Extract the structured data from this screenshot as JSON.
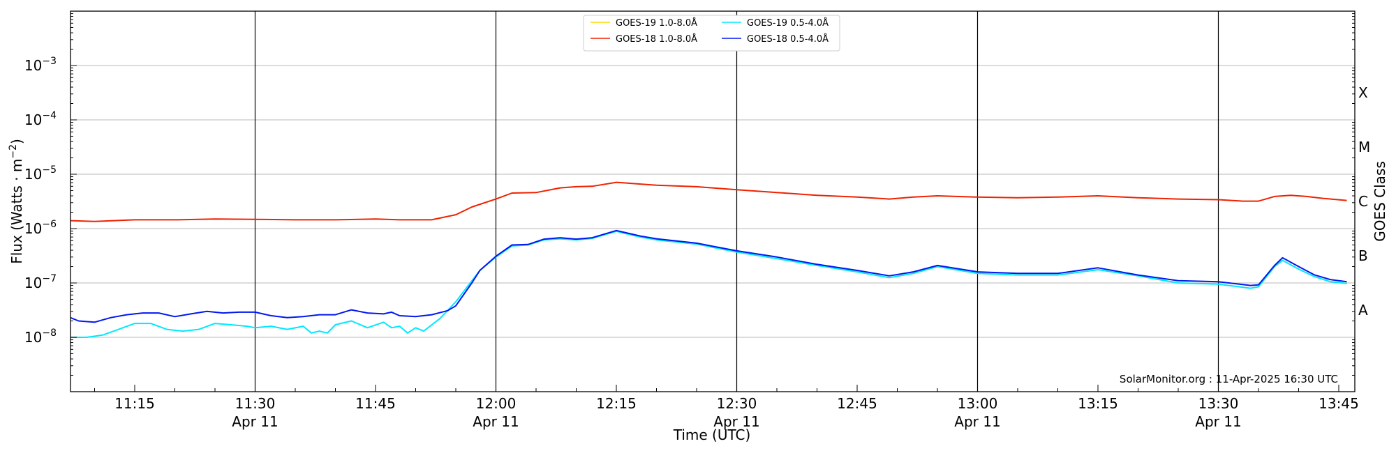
{
  "chart_data": {
    "type": "line",
    "xlabel": "Time (UTC)",
    "ylabel": "Flux (Watts · m",
    "ylabel_sup": "−2",
    "ylabel_close": ")",
    "y2label": "GOES Class",
    "credit": "SolarMonitor.org : 11-Apr-2025 16:30 UTC",
    "yscale": "log",
    "ylim": [
      1e-09,
      0.01
    ],
    "xlim": [
      "11:07",
      "13:47"
    ],
    "grid": "horizontal gridlines at decades; vertical lines at half hours",
    "legend_position": "top-center",
    "y_ticks": [
      {
        "value": 1e-08,
        "base": "10",
        "exp": "−8"
      },
      {
        "value": 1e-07,
        "base": "10",
        "exp": "−7"
      },
      {
        "value": 1e-06,
        "base": "10",
        "exp": "−6"
      },
      {
        "value": 1e-05,
        "base": "10",
        "exp": "−5"
      },
      {
        "value": 0.0001,
        "base": "10",
        "exp": "−4"
      },
      {
        "value": 0.001,
        "base": "10",
        "exp": "−3"
      }
    ],
    "class_labels": [
      {
        "label": "A",
        "value": 1e-08
      },
      {
        "label": "B",
        "value": 1e-07
      },
      {
        "label": "C",
        "value": 1e-06
      },
      {
        "label": "M",
        "value": 1e-05
      },
      {
        "label": "X",
        "value": 0.0001
      }
    ],
    "x_ticks": [
      {
        "time": "11:15",
        "label": "11:15",
        "date": ""
      },
      {
        "time": "11:30",
        "label": "11:30",
        "date": "Apr 11"
      },
      {
        "time": "11:45",
        "label": "11:45",
        "date": ""
      },
      {
        "time": "12:00",
        "label": "12:00",
        "date": "Apr 11"
      },
      {
        "time": "12:15",
        "label": "12:15",
        "date": ""
      },
      {
        "time": "12:30",
        "label": "12:30",
        "date": "Apr 11"
      },
      {
        "time": "12:45",
        "label": "12:45",
        "date": ""
      },
      {
        "time": "13:00",
        "label": "13:00",
        "date": "Apr 11"
      },
      {
        "time": "13:15",
        "label": "13:15",
        "date": ""
      },
      {
        "time": "13:30",
        "label": "13:30",
        "date": "Apr 11"
      },
      {
        "time": "13:45",
        "label": "13:45",
        "date": ""
      }
    ],
    "series": [
      {
        "name": "GOES-19 1.0-8.0Å",
        "color": "#ffd700",
        "x": [],
        "y": []
      },
      {
        "name": "GOES-18 1.0-8.0Å",
        "color": "#ee2200",
        "x": [
          "11:07",
          "11:10",
          "11:15",
          "11:20",
          "11:25",
          "11:30",
          "11:35",
          "11:40",
          "11:45",
          "11:48",
          "11:52",
          "11:55",
          "11:57",
          "12:00",
          "12:02",
          "12:05",
          "12:08",
          "12:10",
          "12:12",
          "12:15",
          "12:18",
          "12:20",
          "12:25",
          "12:30",
          "12:35",
          "12:40",
          "12:45",
          "12:49",
          "12:52",
          "12:55",
          "13:00",
          "13:05",
          "13:10",
          "13:15",
          "13:20",
          "13:25",
          "13:30",
          "13:33",
          "13:35",
          "13:37",
          "13:39",
          "13:41",
          "13:43",
          "13:46"
        ],
        "y": [
          1.4e-06,
          1.35e-06,
          1.45e-06,
          1.45e-06,
          1.5e-06,
          1.48e-06,
          1.45e-06,
          1.45e-06,
          1.5e-06,
          1.45e-06,
          1.45e-06,
          1.8e-06,
          2.5e-06,
          3.5e-06,
          4.5e-06,
          4.6e-06,
          5.6e-06,
          5.9e-06,
          6e-06,
          7.1e-06,
          6.6e-06,
          6.3e-06,
          5.9e-06,
          5.2e-06,
          4.6e-06,
          4.1e-06,
          3.8e-06,
          3.5e-06,
          3.8e-06,
          4e-06,
          3.8e-06,
          3.7e-06,
          3.8e-06,
          4e-06,
          3.7e-06,
          3.5e-06,
          3.4e-06,
          3.2e-06,
          3.2e-06,
          3.9e-06,
          4.1e-06,
          3.9e-06,
          3.6e-06,
          3.3e-06
        ]
      },
      {
        "name": "GOES-19 0.5-4.0Å",
        "color": "#00e8ff",
        "x": [
          "11:07",
          "11:09",
          "11:11",
          "11:13",
          "11:15",
          "11:17",
          "11:19",
          "11:21",
          "11:23",
          "11:25",
          "11:27",
          "11:29",
          "11:30",
          "11:32",
          "11:34",
          "11:36",
          "11:37",
          "11:38",
          "11:39",
          "11:40",
          "11:42",
          "11:44",
          "11:46",
          "11:47",
          "11:48",
          "11:49",
          "11:50",
          "11:51",
          "11:53",
          "11:55",
          "11:57",
          "11:58",
          "12:00",
          "12:02",
          "12:04",
          "12:06",
          "12:08",
          "12:10",
          "12:12",
          "12:15",
          "12:18",
          "12:20",
          "12:25",
          "12:30",
          "12:35",
          "12:40",
          "12:45",
          "12:49",
          "12:52",
          "12:55",
          "13:00",
          "13:05",
          "13:10",
          "13:15",
          "13:20",
          "13:25",
          "13:30",
          "13:34",
          "13:35",
          "13:37",
          "13:38",
          "13:40",
          "13:42",
          "13:44",
          "13:46"
        ],
        "y": [
          1e-08,
          1e-08,
          1.1e-08,
          1.4e-08,
          1.8e-08,
          1.8e-08,
          1.4e-08,
          1.3e-08,
          1.4e-08,
          1.8e-08,
          1.7e-08,
          1.6e-08,
          1.5e-08,
          1.6e-08,
          1.4e-08,
          1.6e-08,
          1.2e-08,
          1.3e-08,
          1.2e-08,
          1.7e-08,
          2e-08,
          1.5e-08,
          1.9e-08,
          1.5e-08,
          1.6e-08,
          1.2e-08,
          1.5e-08,
          1.3e-08,
          2.2e-08,
          4.5e-08,
          1.1e-07,
          1.7e-07,
          3e-07,
          4.8e-07,
          5e-07,
          6.2e-07,
          6.5e-07,
          6.2e-07,
          6.6e-07,
          8.9e-07,
          7e-07,
          6.2e-07,
          5.2e-07,
          3.7e-07,
          2.8e-07,
          2.1e-07,
          1.6e-07,
          1.25e-07,
          1.5e-07,
          2e-07,
          1.5e-07,
          1.4e-07,
          1.4e-07,
          1.75e-07,
          1.35e-07,
          1e-07,
          9.5e-08,
          8e-08,
          8.5e-08,
          2e-07,
          2.6e-07,
          1.8e-07,
          1.3e-07,
          1.05e-07,
          9.8e-08
        ]
      },
      {
        "name": "GOES-18 0.5-4.0Å",
        "color": "#0018ee",
        "x": [
          "11:07",
          "11:08",
          "11:10",
          "11:12",
          "11:14",
          "11:16",
          "11:18",
          "11:20",
          "11:22",
          "11:24",
          "11:26",
          "11:28",
          "11:30",
          "11:32",
          "11:34",
          "11:36",
          "11:38",
          "11:40",
          "11:42",
          "11:44",
          "11:46",
          "11:47",
          "11:48",
          "11:50",
          "11:52",
          "11:54",
          "11:55",
          "11:57",
          "11:58",
          "12:00",
          "12:02",
          "12:04",
          "12:06",
          "12:08",
          "12:10",
          "12:12",
          "12:15",
          "12:18",
          "12:20",
          "12:25",
          "12:30",
          "12:35",
          "12:40",
          "12:45",
          "12:49",
          "12:52",
          "12:55",
          "13:00",
          "13:05",
          "13:10",
          "13:15",
          "13:20",
          "13:25",
          "13:30",
          "13:34",
          "13:35",
          "13:37",
          "13:38",
          "13:40",
          "13:42",
          "13:44",
          "13:46"
        ],
        "y": [
          2.3e-08,
          2e-08,
          1.9e-08,
          2.3e-08,
          2.6e-08,
          2.8e-08,
          2.8e-08,
          2.4e-08,
          2.7e-08,
          3e-08,
          2.8e-08,
          2.9e-08,
          2.9e-08,
          2.5e-08,
          2.3e-08,
          2.4e-08,
          2.6e-08,
          2.6e-08,
          3.2e-08,
          2.8e-08,
          2.7e-08,
          2.9e-08,
          2.5e-08,
          2.4e-08,
          2.6e-08,
          3.1e-08,
          3.8e-08,
          1e-07,
          1.7e-07,
          3.1e-07,
          5e-07,
          5.1e-07,
          6.4e-07,
          6.8e-07,
          6.4e-07,
          6.8e-07,
          9.2e-07,
          7.3e-07,
          6.5e-07,
          5.4e-07,
          3.9e-07,
          3e-07,
          2.2e-07,
          1.7e-07,
          1.35e-07,
          1.6e-07,
          2.1e-07,
          1.6e-07,
          1.5e-07,
          1.5e-07,
          1.9e-07,
          1.4e-07,
          1.1e-07,
          1.05e-07,
          9e-08,
          9.2e-08,
          2.1e-07,
          2.9e-07,
          2e-07,
          1.4e-07,
          1.15e-07,
          1.05e-07
        ]
      }
    ]
  }
}
